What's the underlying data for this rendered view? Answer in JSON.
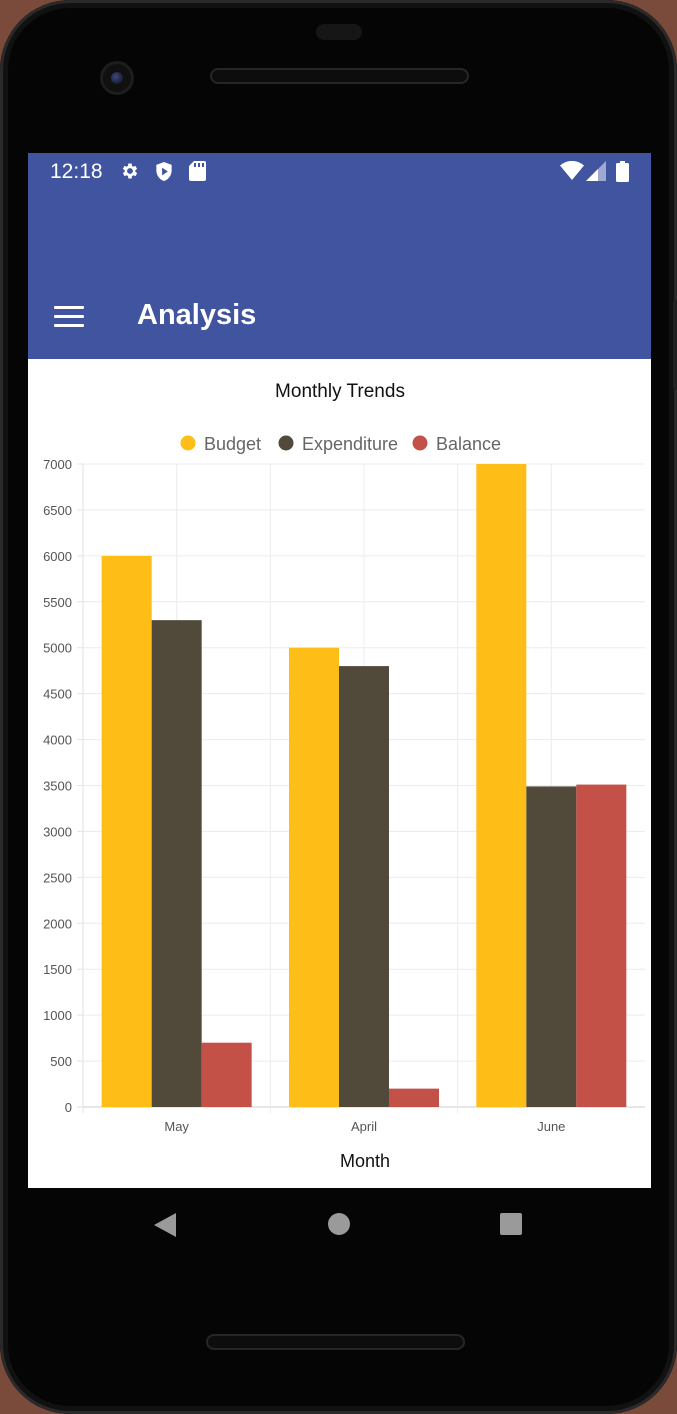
{
  "status_bar": {
    "time": "12:18",
    "left_icons": [
      "gear-icon",
      "shield-icon",
      "sd-card-icon"
    ],
    "right_icons": [
      "wifi-icon",
      "cell-signal-icon",
      "battery-icon"
    ]
  },
  "app_bar": {
    "title": "Analysis",
    "menu_icon": "menu-icon"
  },
  "colors": {
    "app_bar": "#4054a0",
    "budget": "#febd17",
    "expenditure": "#514a3b",
    "balance": "#c35147"
  },
  "chart_data": {
    "type": "bar",
    "title": "Monthly Trends",
    "xlabel": "Month",
    "ylabel": "",
    "categories": [
      "May",
      "April",
      "June"
    ],
    "series": [
      {
        "name": "Budget",
        "values": [
          6000,
          5000,
          7000
        ]
      },
      {
        "name": "Expenditure",
        "values": [
          5300,
          4800,
          3490
        ]
      },
      {
        "name": "Balance",
        "values": [
          700,
          200,
          3510
        ]
      }
    ],
    "ylim": [
      0,
      7000
    ],
    "yticks": [
      "0",
      "500",
      "1000",
      "1500",
      "2000",
      "2500",
      "3000",
      "3500",
      "4000",
      "4500",
      "5000",
      "5500",
      "6000",
      "6500",
      "7000"
    ],
    "grid": true,
    "legend": "top-center"
  },
  "nav_bar": {
    "icons": [
      "back-icon",
      "home-icon",
      "recents-icon"
    ]
  }
}
